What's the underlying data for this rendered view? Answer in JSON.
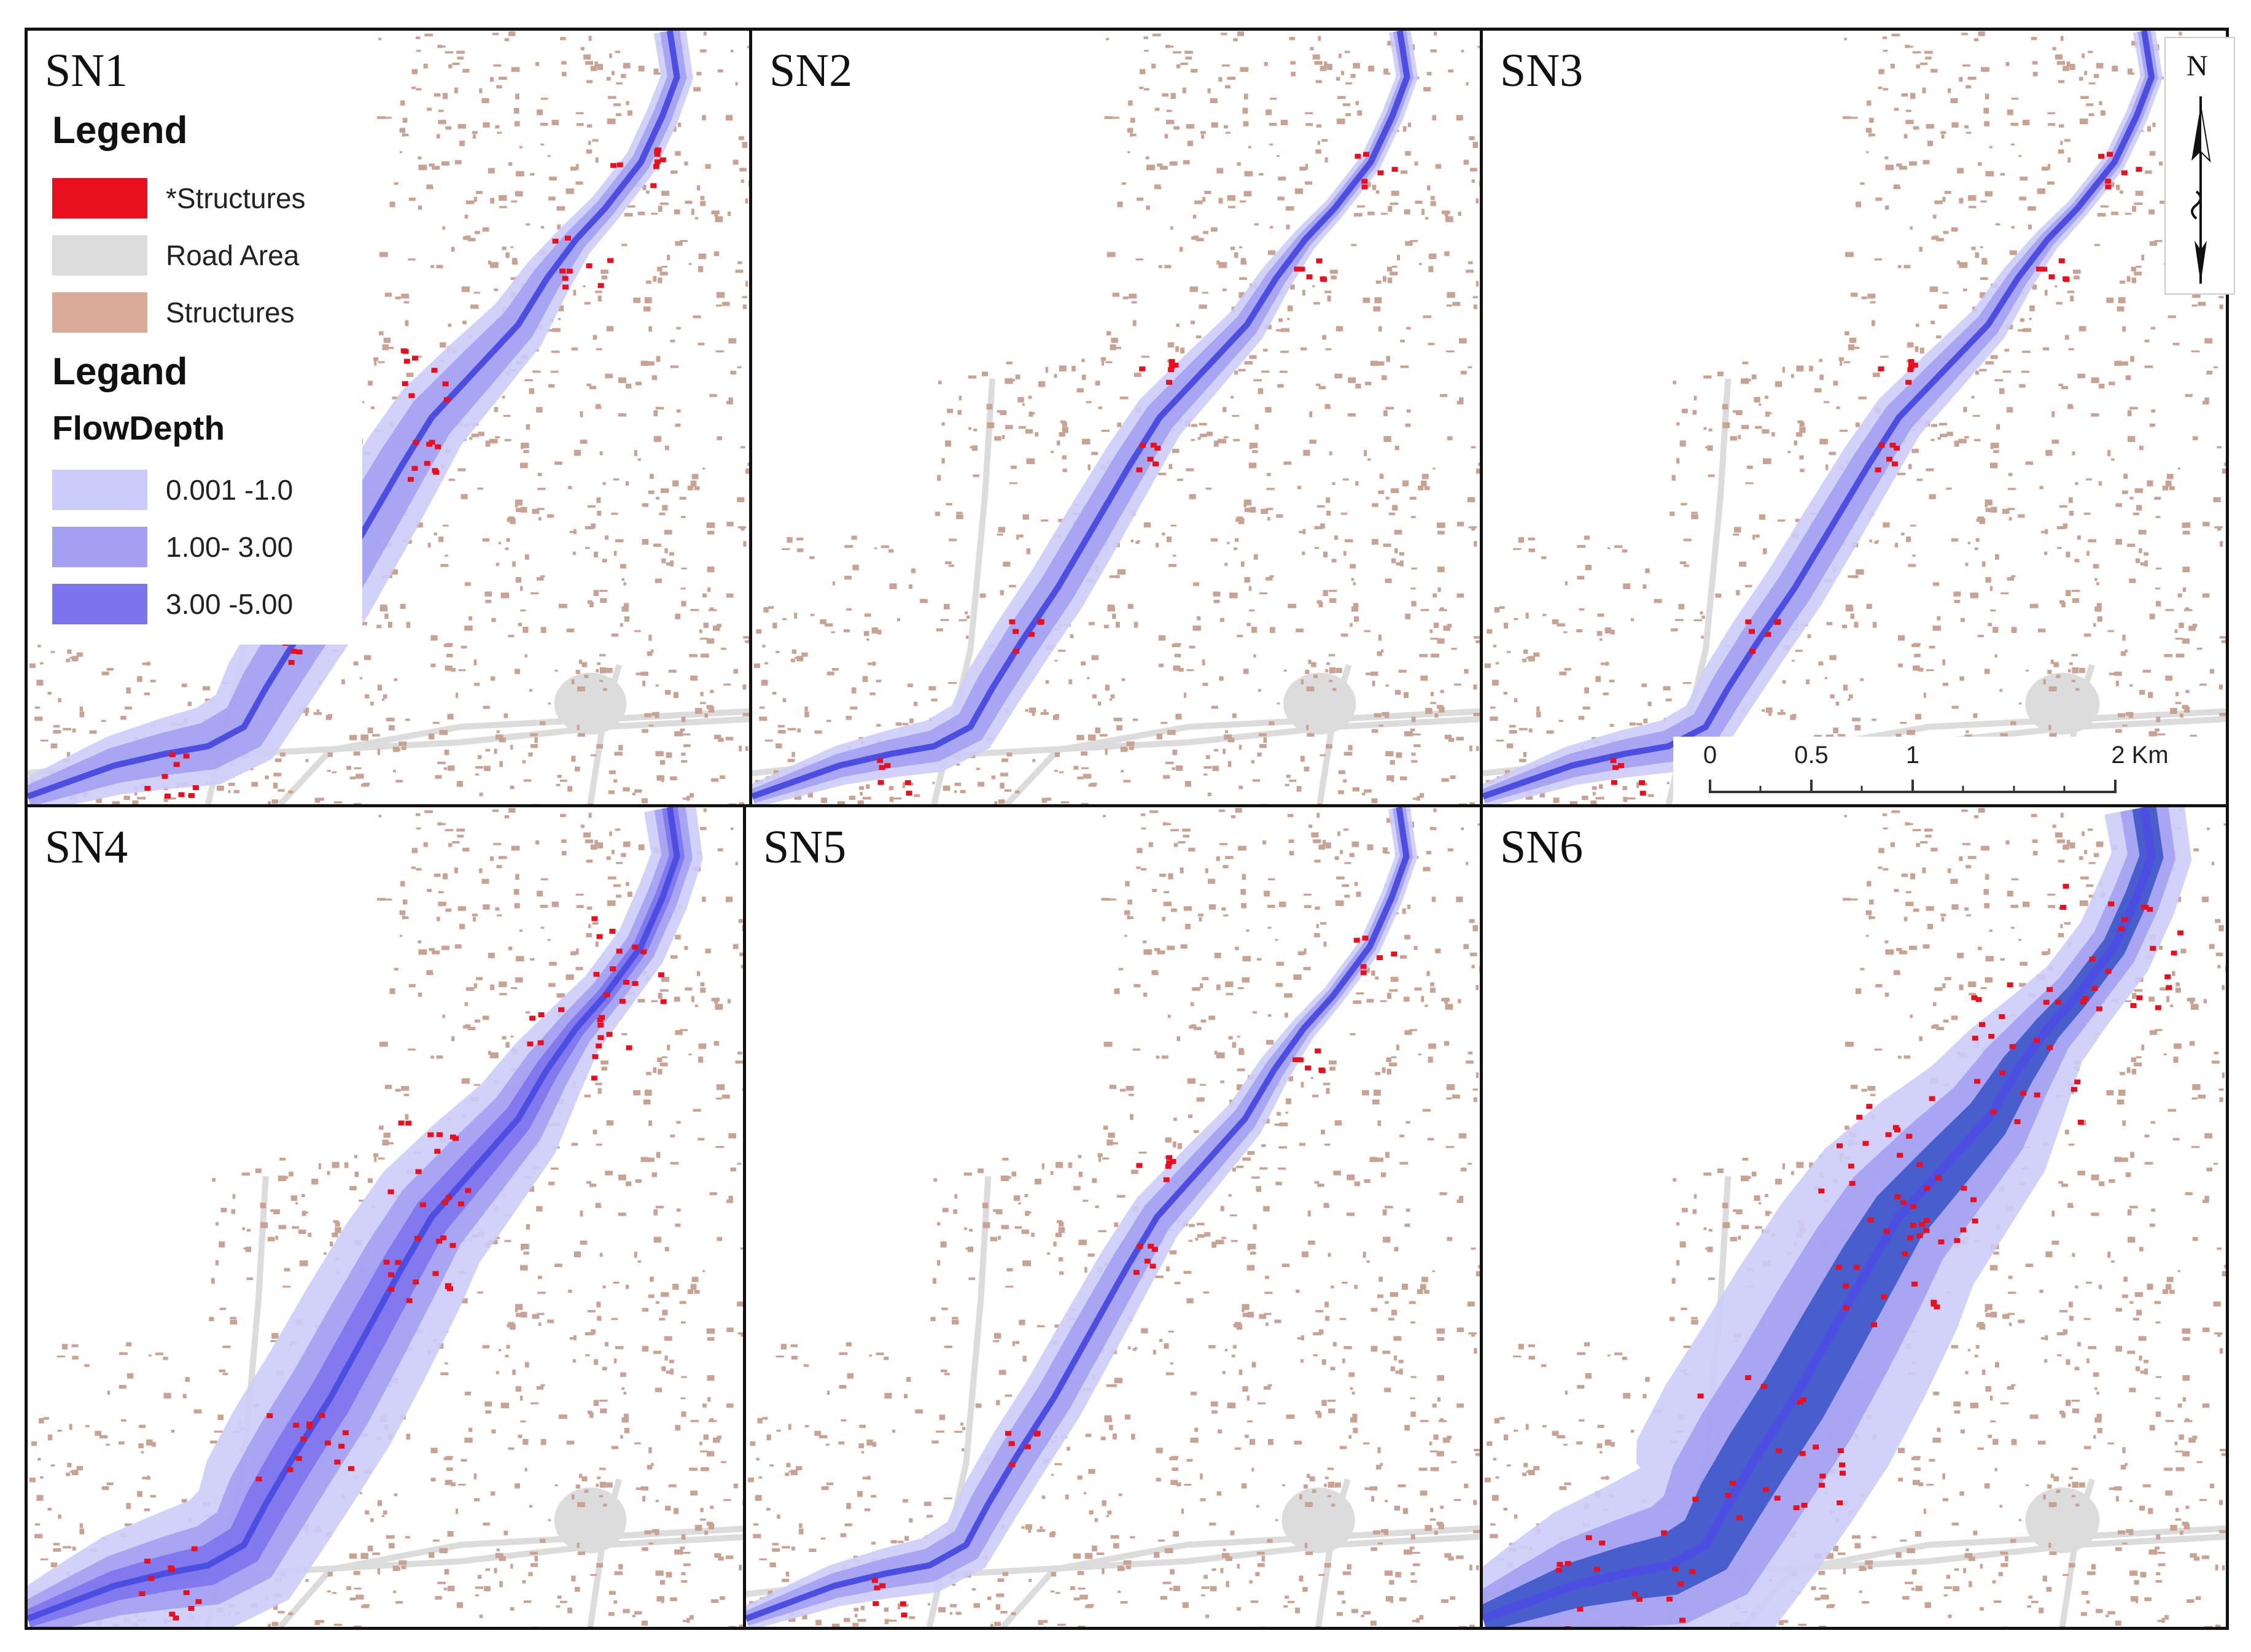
{
  "panels": [
    {
      "id": "SN1",
      "label": "SN1",
      "flood_extent": "moderate"
    },
    {
      "id": "SN2",
      "label": "SN2",
      "flood_extent": "low"
    },
    {
      "id": "SN3",
      "label": "SN3",
      "flood_extent": "low"
    },
    {
      "id": "SN4",
      "label": "SN4",
      "flood_extent": "high"
    },
    {
      "id": "SN5",
      "label": "SN5",
      "flood_extent": "low"
    },
    {
      "id": "SN6",
      "label": "SN6",
      "flood_extent": "very-high"
    }
  ],
  "legend": {
    "title1": "Legend",
    "items1": [
      {
        "label": "*Structures",
        "color": "#e8101e"
      },
      {
        "label": "Road Area",
        "color": "#dcdcdc"
      },
      {
        "label": "Structures",
        "color": "#d9ab98"
      }
    ],
    "title2": "Legand",
    "subtitle": "FlowDepth",
    "items2": [
      {
        "label": "0.001 -1.0",
        "color": "#ccccfa"
      },
      {
        "label": "1.00- 3.00",
        "color": "#a3a0f2"
      },
      {
        "label": "3.00 -5.00",
        "color": "#7c74ec"
      }
    ]
  },
  "north_arrow": {
    "letter": "N"
  },
  "scale_bar": {
    "ticks": [
      "0",
      "0.5",
      "1",
      "2 Km"
    ],
    "values_km": [
      0,
      0.5,
      1,
      2
    ]
  },
  "colors": {
    "structures": "#c8a293",
    "road": "#dcdcdc",
    "river": "#4b4ee0",
    "flood_low": "#ccccfa",
    "flood_mid": "#a3a0f2",
    "flood_high": "#7c74ec",
    "flood_very_high": "#3d56c8",
    "affected_structures": "#e8101e"
  }
}
